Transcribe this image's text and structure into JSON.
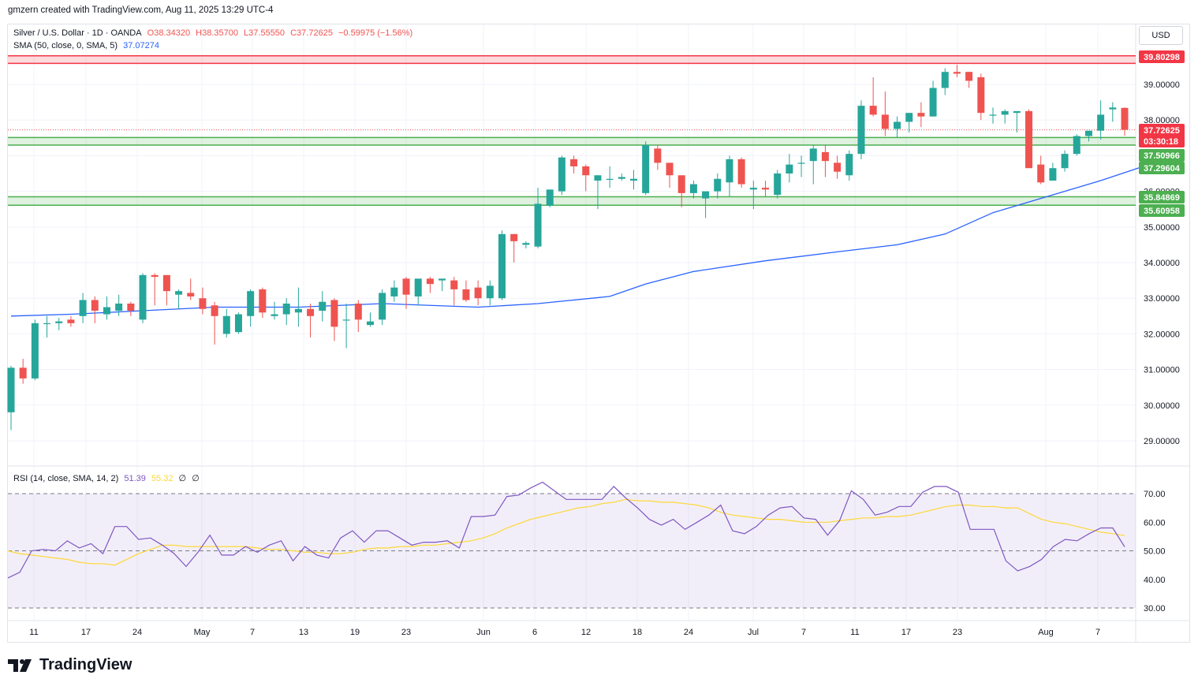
{
  "header": {
    "credit": "gmzern created with TradingView.com, Aug 11, 2025 13:29 UTC-4"
  },
  "legend": {
    "symbol": "Silver / U.S. Dollar · 1D · OANDA",
    "open": "O38.34320",
    "high": "H38.35700",
    "low": "L37.55550",
    "close": "C37.72625",
    "change": "−0.59975 (−1.56%)",
    "sma_label": "SMA (50, close, 0, SMA, 5)",
    "sma_value": "37.07274",
    "rsi_label": "RSI (14, close, SMA, 14, 2)",
    "rsi_value": "51.39",
    "rsi_sma_value": "55.32",
    "rsi_extra1": "∅",
    "rsi_extra2": "∅"
  },
  "currency": "USD",
  "brand": "TradingView",
  "colors": {
    "up": "#26a69a",
    "down": "#ef5350",
    "sma": "#2962ff",
    "rsi": "#7e57c2",
    "rsi_sma": "#fdd835",
    "zone_green": "#4caf50",
    "zone_red": "#f23645"
  },
  "price_labels": [
    {
      "text": "39.80298",
      "bg": "#f23645"
    },
    {
      "text": "37.72625",
      "bg": "#f23645"
    },
    {
      "text": "03:30:18",
      "bg": "#f23645"
    },
    {
      "text": "37.50966",
      "bg": "#4caf50"
    },
    {
      "text": "37.29604",
      "bg": "#4caf50"
    },
    {
      "text": "35.84869",
      "bg": "#4caf50"
    },
    {
      "text": "35.60958",
      "bg": "#4caf50"
    }
  ],
  "chart_data": [
    {
      "type": "candlestick",
      "title": "Silver / U.S. Dollar · 1D · OANDA",
      "ylim": [
        28,
        40
      ],
      "yticks": [
        29,
        30,
        31,
        32,
        33,
        34,
        35,
        36,
        37,
        38,
        39
      ],
      "ytick_labels": [
        "29.00000",
        "30.00000",
        "31.00000",
        "32.00000",
        "33.00000",
        "34.00000",
        "35.00000",
        "36.00000",
        "37.00000",
        "38.00000",
        "39.00000"
      ],
      "x_labels": [
        "11",
        "17",
        "24",
        "May",
        "7",
        "13",
        "19",
        "23",
        "Jun",
        "6",
        "12",
        "18",
        "24",
        "Jul",
        "7",
        "11",
        "17",
        "23",
        "Aug",
        "7"
      ],
      "ohlc": [
        [
          29.8,
          31.1,
          29.3,
          31.05
        ],
        [
          31.05,
          31.3,
          30.6,
          30.75
        ],
        [
          30.75,
          32.4,
          30.7,
          32.3
        ],
        [
          32.3,
          32.5,
          31.9,
          32.3
        ],
        [
          32.3,
          32.45,
          32.1,
          32.35
        ],
        [
          32.4,
          32.5,
          32.2,
          32.3
        ],
        [
          32.5,
          33.15,
          32.3,
          32.95
        ],
        [
          32.95,
          33.05,
          32.3,
          32.65
        ],
        [
          32.55,
          33.05,
          32.4,
          32.75
        ],
        [
          32.65,
          33.1,
          32.5,
          32.85
        ],
        [
          32.85,
          32.9,
          32.5,
          32.65
        ],
        [
          32.4,
          33.7,
          32.3,
          33.65
        ],
        [
          33.65,
          33.7,
          32.8,
          33.6
        ],
        [
          33.65,
          33.65,
          32.8,
          33.2
        ],
        [
          33.1,
          33.25,
          32.7,
          33.2
        ],
        [
          33.15,
          33.55,
          32.95,
          33.05
        ],
        [
          33.0,
          33.3,
          32.55,
          32.7
        ],
        [
          32.8,
          32.9,
          31.7,
          32.5
        ],
        [
          32.0,
          32.7,
          31.9,
          32.5
        ],
        [
          32.05,
          32.6,
          32.0,
          32.55
        ],
        [
          32.5,
          33.25,
          32.2,
          33.2
        ],
        [
          33.25,
          33.3,
          32.45,
          32.6
        ],
        [
          32.5,
          32.9,
          32.4,
          32.55
        ],
        [
          32.55,
          33.0,
          32.25,
          32.85
        ],
        [
          32.6,
          33.3,
          32.2,
          32.7
        ],
        [
          32.7,
          32.85,
          31.9,
          32.5
        ],
        [
          32.65,
          33.2,
          32.35,
          32.9
        ],
        [
          32.95,
          33.0,
          31.8,
          32.2
        ],
        [
          32.4,
          32.85,
          31.6,
          32.4
        ],
        [
          32.85,
          32.95,
          32.05,
          32.4
        ],
        [
          32.25,
          32.6,
          32.2,
          32.35
        ],
        [
          32.4,
          33.25,
          32.25,
          33.15
        ],
        [
          33.05,
          33.5,
          32.9,
          33.3
        ],
        [
          33.55,
          33.6,
          32.7,
          33.1
        ],
        [
          33.05,
          33.5,
          32.8,
          33.55
        ],
        [
          33.55,
          33.6,
          33.15,
          33.4
        ],
        [
          33.5,
          33.55,
          33.2,
          33.55
        ],
        [
          33.5,
          33.6,
          32.8,
          33.25
        ],
        [
          33.25,
          33.5,
          32.9,
          32.95
        ],
        [
          33.3,
          33.5,
          32.8,
          33.0
        ],
        [
          33.0,
          33.5,
          32.8,
          33.35
        ],
        [
          33.0,
          34.9,
          32.95,
          34.8
        ],
        [
          34.8,
          34.8,
          34.0,
          34.6
        ],
        [
          34.5,
          34.6,
          34.4,
          34.55
        ],
        [
          34.45,
          36.1,
          34.4,
          35.65
        ],
        [
          35.6,
          36.0,
          35.55,
          36.05
        ],
        [
          36.0,
          37.0,
          35.9,
          36.95
        ],
        [
          36.9,
          37.0,
          36.5,
          36.7
        ],
        [
          36.7,
          36.75,
          36.0,
          36.45
        ],
        [
          36.3,
          36.45,
          35.5,
          36.45
        ],
        [
          36.35,
          36.7,
          36.1,
          36.35
        ],
        [
          36.35,
          36.5,
          36.3,
          36.4
        ],
        [
          36.3,
          36.6,
          36.05,
          36.35
        ],
        [
          35.95,
          37.4,
          35.9,
          37.3
        ],
        [
          37.2,
          37.3,
          36.6,
          36.8
        ],
        [
          36.8,
          36.8,
          36.1,
          36.45
        ],
        [
          36.45,
          36.45,
          35.55,
          35.95
        ],
        [
          35.95,
          36.3,
          35.8,
          36.2
        ],
        [
          35.8,
          35.95,
          35.25,
          36.0
        ],
        [
          36.0,
          36.5,
          35.8,
          36.35
        ],
        [
          36.25,
          37.0,
          35.85,
          36.9
        ],
        [
          36.9,
          36.95,
          36.1,
          36.2
        ],
        [
          36.05,
          36.3,
          35.5,
          36.1
        ],
        [
          36.1,
          36.3,
          35.85,
          36.05
        ],
        [
          35.9,
          36.6,
          35.8,
          36.5
        ],
        [
          36.5,
          37.05,
          36.25,
          36.75
        ],
        [
          36.8,
          37.0,
          36.4,
          36.8
        ],
        [
          36.85,
          37.3,
          36.2,
          37.2
        ],
        [
          37.1,
          37.3,
          36.4,
          36.85
        ],
        [
          36.8,
          37.0,
          36.35,
          36.55
        ],
        [
          36.45,
          37.15,
          36.3,
          37.05
        ],
        [
          37.05,
          38.55,
          36.9,
          38.4
        ],
        [
          38.4,
          39.2,
          38.1,
          38.15
        ],
        [
          38.15,
          38.8,
          37.55,
          37.75
        ],
        [
          37.75,
          38.1,
          37.5,
          37.95
        ],
        [
          37.95,
          38.2,
          37.65,
          38.2
        ],
        [
          38.2,
          38.5,
          37.8,
          38.1
        ],
        [
          38.1,
          39.1,
          38.1,
          38.9
        ],
        [
          38.9,
          39.45,
          38.7,
          39.35
        ],
        [
          39.35,
          39.55,
          39.2,
          39.3
        ],
        [
          39.35,
          39.35,
          38.9,
          39.1
        ],
        [
          39.2,
          39.3,
          38.0,
          38.2
        ],
        [
          38.15,
          38.35,
          37.9,
          38.15
        ],
        [
          38.15,
          38.3,
          37.9,
          38.25
        ],
        [
          38.2,
          38.2,
          37.65,
          38.25
        ],
        [
          38.25,
          38.3,
          36.75,
          36.65
        ],
        [
          36.75,
          37.0,
          36.2,
          36.25
        ],
        [
          36.3,
          36.8,
          36.35,
          36.65
        ],
        [
          36.65,
          37.15,
          36.55,
          37.05
        ],
        [
          37.05,
          37.6,
          37.0,
          37.55
        ],
        [
          37.55,
          37.7,
          37.4,
          37.7
        ],
        [
          37.7,
          38.55,
          37.45,
          38.15
        ],
        [
          38.3,
          38.5,
          37.95,
          38.35
        ],
        [
          38.34,
          38.357,
          37.5555,
          37.72625
        ]
      ],
      "sma": [
        [
          0,
          32.5
        ],
        [
          5,
          32.55
        ],
        [
          11,
          32.65
        ],
        [
          17,
          32.75
        ],
        [
          24,
          32.75
        ],
        [
          31,
          32.85
        ],
        [
          39,
          32.75
        ],
        [
          44,
          32.85
        ],
        [
          50,
          33.05
        ],
        [
          53,
          33.4
        ],
        [
          57,
          33.75
        ],
        [
          63,
          34.05
        ],
        [
          69,
          34.3
        ],
        [
          74,
          34.5
        ],
        [
          78,
          34.8
        ],
        [
          82,
          35.4
        ],
        [
          87,
          35.9
        ],
        [
          91,
          36.3
        ],
        [
          95,
          36.75
        ],
        [
          96,
          36.85
        ]
      ],
      "zones": [
        {
          "low": 39.59,
          "high": 39.80298,
          "color": "red"
        },
        {
          "low": 37.29604,
          "high": 37.50966,
          "color": "green"
        },
        {
          "low": 35.60958,
          "high": 35.84869,
          "color": "green"
        }
      ],
      "current_price": 37.72625
    },
    {
      "type": "line",
      "title": "RSI (14, close, SMA, 14, 2)",
      "ylim": [
        25,
        75
      ],
      "yticks": [
        30,
        40,
        50,
        60,
        70
      ],
      "ytick_labels": [
        "30.00",
        "40.00",
        "50.00",
        "60.00",
        "70.00"
      ],
      "bands": [
        30,
        50,
        70
      ],
      "series": [
        {
          "values": [
            40.5,
            42.5,
            50.0,
            50.5,
            50.0,
            53.5,
            51.0,
            52.5,
            49.0,
            58.5,
            58.5,
            54.0,
            54.5,
            52.0,
            49.0,
            44.5,
            49.5,
            55.5,
            48.5,
            48.5,
            51.5,
            49.5,
            52.0,
            53.5,
            46.5,
            51.5,
            48.5,
            47.5,
            54.5,
            57.0,
            53.0,
            57.0,
            57.0,
            54.5,
            52.0,
            53.0,
            53.0,
            53.5,
            51.0,
            62.0,
            62.0,
            62.5,
            69.0,
            69.5,
            72.0,
            74.0,
            71.0,
            68.0,
            68.0,
            68.0,
            68.0,
            72.5,
            68.5,
            65.0,
            61.0,
            59.0,
            61.0,
            57.5,
            60.0,
            62.5,
            66.0,
            57.0,
            56.0,
            58.5,
            62.5,
            65.0,
            65.5,
            61.5,
            61.0,
            55.5,
            60.5,
            71.0,
            68.0,
            62.5,
            63.5,
            65.5,
            65.5,
            70.5,
            72.5,
            72.5,
            70.5,
            57.5,
            57.5,
            57.5,
            46.5,
            43.0,
            44.5,
            47.0,
            51.5,
            54.0,
            53.5,
            56.0,
            58.0,
            58.0,
            51.39
          ]
        },
        {
          "values": [
            50.0,
            49.0,
            48.5,
            48.0,
            47.5,
            47.0,
            46.0,
            45.5,
            45.5,
            45.0,
            47.0,
            49.0,
            50.5,
            52.0,
            52.0,
            51.5,
            51.5,
            51.5,
            51.5,
            51.5,
            51.5,
            51.0,
            50.5,
            50.5,
            50.0,
            49.5,
            49.5,
            49.0,
            49.0,
            49.5,
            50.5,
            51.0,
            51.0,
            51.5,
            51.5,
            52.0,
            52.0,
            52.5,
            53.0,
            53.5,
            54.5,
            56.0,
            58.0,
            59.5,
            61.0,
            62.0,
            63.0,
            64.0,
            65.0,
            65.5,
            66.5,
            67.0,
            68.0,
            67.5,
            67.5,
            67.0,
            67.0,
            66.5,
            66.0,
            65.0,
            63.5,
            62.5,
            62.0,
            61.5,
            61.0,
            61.0,
            60.5,
            60.0,
            60.0,
            60.0,
            60.5,
            61.0,
            61.5,
            61.5,
            62.0,
            62.0,
            62.5,
            63.5,
            64.5,
            65.5,
            66.0,
            66.0,
            65.5,
            65.5,
            65.0,
            65.0,
            63.0,
            61.0,
            60.0,
            59.5,
            58.5,
            57.5,
            56.5,
            56.0,
            55.32
          ]
        }
      ]
    }
  ]
}
